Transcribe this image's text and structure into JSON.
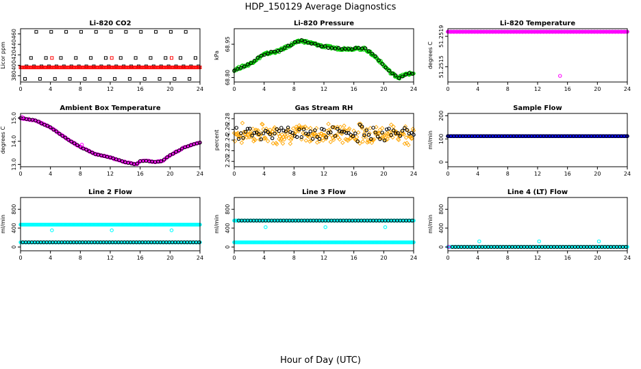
{
  "figure": {
    "title": "HDP_150129  Average Diagnostics",
    "xlabel": "Hour of Day (UTC)"
  },
  "colors": {
    "black": "#000000",
    "red": "#ff0000",
    "green": "#00cc00",
    "magenta": "#ff00ff",
    "orange": "#ffa500",
    "blue": "#0000ff",
    "cyan": "#00ffff"
  },
  "chart_data": [
    {
      "type": "scatter",
      "title": "Li-820 CO2",
      "ylabel": "Licor ppm",
      "xlim": [
        0,
        24
      ],
      "xticks": [
        0,
        4,
        8,
        12,
        16,
        20,
        24
      ],
      "xtick_labels": [
        "0",
        "4",
        "8",
        "12",
        "16",
        "20",
        "24"
      ],
      "ylim": [
        368,
        470
      ],
      "yticks": [
        380,
        400,
        420,
        440,
        460
      ],
      "ytick_labels": [
        "380",
        "400",
        "420",
        "440",
        "460"
      ],
      "series": [
        {
          "name": "black-high",
          "color": "black",
          "marker": "square",
          "gen": {
            "kind": "const",
            "value": 464,
            "x0": 2.1,
            "x1": 23.8,
            "step": 2
          }
        },
        {
          "name": "black-low",
          "color": "black",
          "marker": "square",
          "gen": {
            "kind": "const",
            "value": 374,
            "x0": 0.6,
            "x1": 23.8,
            "step": 2
          }
        },
        {
          "name": "black-mid",
          "color": "black",
          "marker": "square",
          "gen": {
            "kind": "const",
            "value": 414,
            "x0": 1.4,
            "x1": 23.8,
            "step": 2
          }
        },
        {
          "name": "black-base",
          "color": "black",
          "marker": "square",
          "gen": {
            "kind": "const",
            "value": 398,
            "x0": 0.8,
            "x1": 23.8,
            "step": 1
          }
        },
        {
          "name": "red-base",
          "color": "red",
          "marker": "square",
          "gen": {
            "kind": "const",
            "value": 396,
            "x0": 0,
            "x1": 24,
            "step": 0.12
          }
        },
        {
          "name": "red-spikes",
          "color": "red",
          "marker": "square",
          "x": [
            4.2,
            12.2,
            20.2
          ],
          "y": [
            414,
            414,
            414
          ]
        }
      ]
    },
    {
      "type": "scatter",
      "title": "Li-820 Pressure",
      "ylabel": "kPa",
      "xlim": [
        0,
        24
      ],
      "xticks": [
        0,
        4,
        8,
        12,
        16,
        20,
        24
      ],
      "xtick_labels": [
        "0",
        "4",
        "8",
        "12",
        "16",
        "20",
        "24"
      ],
      "ylim": [
        68.78,
        69.02
      ],
      "yticks": [
        68.8,
        68.95
      ],
      "ytick_labels": [
        "68.80",
        "68.95"
      ],
      "series": [
        {
          "name": "green",
          "color": "green",
          "marker": "circle",
          "gen": {
            "kind": "interp",
            "step": 0.1,
            "jitter": 0.006,
            "x": [
              0,
              2,
              4,
              6,
              8,
              9,
              10,
              12,
              14,
              16,
              17.5,
              19,
              21,
              22,
              23,
              24
            ],
            "y": [
              68.835,
              68.86,
              68.905,
              68.92,
              68.955,
              68.965,
              68.958,
              68.94,
              68.93,
              68.93,
              68.93,
              68.89,
              68.82,
              68.8,
              68.815,
              68.82
            ]
          }
        },
        {
          "name": "black",
          "color": "black",
          "marker": "circle",
          "gen": {
            "kind": "interp",
            "step": 0.45,
            "jitter": 0.004,
            "x": [
              0,
              2,
              4,
              6,
              8,
              9,
              10,
              12,
              14,
              16,
              17.5,
              19,
              21,
              22,
              23,
              24
            ],
            "y": [
              68.835,
              68.86,
              68.905,
              68.92,
              68.955,
              68.965,
              68.958,
              68.94,
              68.93,
              68.93,
              68.93,
              68.89,
              68.82,
              68.8,
              68.815,
              68.82
            ]
          }
        }
      ]
    },
    {
      "type": "scatter",
      "title": "Li-820 Temperature",
      "ylabel": "degrees C",
      "xlim": [
        0,
        24
      ],
      "xticks": [
        0,
        4,
        8,
        12,
        16,
        20,
        24
      ],
      "xtick_labels": [
        "0",
        "4",
        "8",
        "12",
        "16",
        "20",
        "24"
      ],
      "ylim": [
        51.2513,
        51.252
      ],
      "yticks": [
        51.2515,
        51.2519
      ],
      "ytick_labels": [
        "51.2515",
        "51.2519"
      ],
      "series": [
        {
          "name": "black",
          "color": "black",
          "marker": "circle",
          "gen": {
            "kind": "const",
            "value": 51.25196,
            "x0": 0,
            "x1": 24,
            "step": 0.4
          }
        },
        {
          "name": "magenta",
          "color": "magenta",
          "marker": "circle",
          "gen": {
            "kind": "const",
            "value": 51.25196,
            "x0": 0,
            "x1": 24,
            "step": 0.1
          }
        },
        {
          "name": "magenta-outlier",
          "color": "magenta",
          "marker": "circle",
          "x": [
            15
          ],
          "y": [
            51.25138
          ]
        }
      ]
    },
    {
      "type": "scatter",
      "title": "Ambient Box Temperature",
      "ylabel": "degrees C",
      "xlim": [
        0,
        24
      ],
      "xticks": [
        0,
        4,
        8,
        12,
        16,
        20,
        24
      ],
      "xtick_labels": [
        "0",
        "4",
        "8",
        "12",
        "16",
        "20",
        "24"
      ],
      "ylim": [
        12.9,
        15.2
      ],
      "yticks": [
        13.0,
        14.0,
        15.0
      ],
      "ytick_labels": [
        "13.0",
        "14.0",
        "15.0"
      ],
      "series": [
        {
          "name": "magenta",
          "color": "magenta",
          "marker": "circle",
          "gen": {
            "kind": "interp",
            "step": 0.12,
            "jitter": 0.02,
            "x": [
              0,
              2,
              4,
              6,
              8,
              10,
              12,
              14,
              15.5,
              16,
              17,
              18,
              19,
              20,
              22,
              24
            ],
            "y": [
              15.0,
              14.9,
              14.6,
              14.15,
              13.75,
              13.45,
              13.3,
              13.1,
              13.0,
              13.15,
              13.15,
              13.1,
              13.15,
              13.4,
              13.75,
              13.95
            ]
          }
        },
        {
          "name": "black",
          "color": "black",
          "marker": "circle",
          "gen": {
            "kind": "interp",
            "step": 0.4,
            "jitter": 0.01,
            "x": [
              0,
              2,
              4,
              6,
              8,
              10,
              12,
              14,
              15.5,
              16,
              17,
              18,
              19,
              20,
              22,
              24
            ],
            "y": [
              15.0,
              14.9,
              14.6,
              14.15,
              13.75,
              13.45,
              13.3,
              13.1,
              13.0,
              13.15,
              13.15,
              13.1,
              13.15,
              13.4,
              13.75,
              13.95
            ]
          }
        },
        {
          "name": "magenta-extra",
          "color": "magenta",
          "marker": "circle",
          "x": [
            0.2,
            8.2
          ],
          "y": [
            15.05,
            13.85
          ]
        }
      ]
    },
    {
      "type": "scatter",
      "title": "Gas Stream RH",
      "ylabel": "percent",
      "xlim": [
        0,
        24
      ],
      "xticks": [
        0,
        4,
        8,
        12,
        16,
        20,
        24
      ],
      "xtick_labels": [
        "0",
        "4",
        "8",
        "12",
        "16",
        "20",
        "24"
      ],
      "ylim": [
        2.19,
        2.29
      ],
      "yticks": [
        2.2,
        2.22,
        2.24,
        2.26,
        2.28
      ],
      "ytick_labels": [
        "2.20",
        "2.22",
        "2.24",
        "2.26",
        "2.28"
      ],
      "series": [
        {
          "name": "orange",
          "color": "orange",
          "marker": "diamond",
          "gen": {
            "kind": "noise",
            "x0": 0,
            "x1": 24,
            "step": 0.1,
            "center": 2.252,
            "spread": 0.022,
            "seed": 7
          }
        },
        {
          "name": "black",
          "color": "black",
          "marker": "circle",
          "gen": {
            "kind": "noise",
            "x0": 0.3,
            "x1": 24,
            "step": 0.3,
            "center": 2.253,
            "spread": 0.018,
            "seed": 11
          }
        }
      ]
    },
    {
      "type": "scatter",
      "title": "Sample Flow",
      "ylabel": "ml/min",
      "xlim": [
        0,
        24
      ],
      "xticks": [
        0,
        4,
        8,
        12,
        16,
        20,
        24
      ],
      "xtick_labels": [
        "0",
        "4",
        "8",
        "12",
        "16",
        "20",
        "24"
      ],
      "ylim": [
        -20,
        210
      ],
      "yticks": [
        0,
        100,
        200
      ],
      "ytick_labels": [
        "0",
        "100",
        "200"
      ],
      "series": [
        {
          "name": "blue",
          "color": "blue",
          "marker": "circle",
          "gen": {
            "kind": "const",
            "value": 112,
            "x0": 0,
            "x1": 24,
            "step": 0.1
          }
        },
        {
          "name": "black",
          "color": "black",
          "marker": "circle",
          "gen": {
            "kind": "const",
            "value": 112,
            "x0": 0,
            "x1": 24,
            "step": 0.4
          }
        }
      ]
    },
    {
      "type": "scatter",
      "title": "Line 2 Flow",
      "ylabel": "ml/min",
      "xlim": [
        0,
        24
      ],
      "xticks": [
        0,
        4,
        8,
        12,
        16,
        20,
        24
      ],
      "xtick_labels": [
        "0",
        "4",
        "8",
        "12",
        "16",
        "20",
        "24"
      ],
      "ylim": [
        -80,
        1050
      ],
      "yticks": [
        0,
        400,
        800
      ],
      "ytick_labels": [
        "0",
        "400",
        "800"
      ],
      "series": [
        {
          "name": "cyan-high",
          "color": "cyan",
          "marker": "circle",
          "gen": {
            "kind": "const",
            "value": 475,
            "x0": 0,
            "x1": 24,
            "step": 0.1
          }
        },
        {
          "name": "cyan-low",
          "color": "cyan",
          "marker": "circle",
          "gen": {
            "kind": "const",
            "value": 100,
            "x0": 0,
            "x1": 24,
            "step": 0.1
          }
        },
        {
          "name": "black",
          "color": "black",
          "marker": "circle",
          "gen": {
            "kind": "const",
            "value": 100,
            "x0": 0.3,
            "x1": 24,
            "step": 0.4
          }
        },
        {
          "name": "cyan-dips",
          "color": "cyan",
          "marker": "circle",
          "x": [
            4.2,
            12.2,
            20.2
          ],
          "y": [
            355,
            355,
            355
          ]
        }
      ]
    },
    {
      "type": "scatter",
      "title": "Line 3 Flow",
      "ylabel": "ml/min",
      "xlim": [
        0,
        24
      ],
      "xticks": [
        0,
        4,
        8,
        12,
        16,
        20,
        24
      ],
      "xtick_labels": [
        "0",
        "4",
        "8",
        "12",
        "16",
        "20",
        "24"
      ],
      "ylim": [
        -80,
        1050
      ],
      "yticks": [
        0,
        400,
        800
      ],
      "ytick_labels": [
        "0",
        "400",
        "800"
      ],
      "series": [
        {
          "name": "cyan-high",
          "color": "cyan",
          "marker": "circle",
          "gen": {
            "kind": "const",
            "value": 560,
            "x0": 0,
            "x1": 24,
            "step": 0.1
          }
        },
        {
          "name": "cyan-low",
          "color": "cyan",
          "marker": "circle",
          "gen": {
            "kind": "const",
            "value": 100,
            "x0": 0,
            "x1": 24,
            "step": 0.1
          }
        },
        {
          "name": "black",
          "color": "black",
          "marker": "circle",
          "gen": {
            "kind": "const",
            "value": 560,
            "x0": 0.6,
            "x1": 24,
            "step": 0.4
          }
        },
        {
          "name": "cyan-dips",
          "color": "cyan",
          "marker": "circle",
          "x": [
            4.2,
            12.2,
            20.2
          ],
          "y": [
            420,
            420,
            420
          ]
        }
      ]
    },
    {
      "type": "scatter",
      "title": "Line 4 (LT) Flow",
      "ylabel": "ml/min",
      "xlim": [
        0,
        24
      ],
      "xticks": [
        0,
        4,
        8,
        12,
        16,
        20,
        24
      ],
      "xtick_labels": [
        "0",
        "4",
        "8",
        "12",
        "16",
        "20",
        "24"
      ],
      "ylim": [
        -80,
        1050
      ],
      "yticks": [
        0,
        400,
        800
      ],
      "ytick_labels": [
        "0",
        "400",
        "800"
      ],
      "series": [
        {
          "name": "cyan",
          "color": "cyan",
          "marker": "circle",
          "gen": {
            "kind": "const",
            "value": 2,
            "x0": 0,
            "x1": 24,
            "step": 0.1
          }
        },
        {
          "name": "black",
          "color": "black",
          "marker": "circle",
          "gen": {
            "kind": "const",
            "value": 2,
            "x0": 0.6,
            "x1": 24,
            "step": 0.4
          }
        },
        {
          "name": "cyan-spikes",
          "color": "cyan",
          "marker": "circle",
          "x": [
            4.2,
            12.2,
            20.2
          ],
          "y": [
            120,
            120,
            120
          ]
        },
        {
          "name": "magenta-start",
          "color": "magenta",
          "marker": "circle",
          "x": [
            0.1
          ],
          "y": [
            2
          ]
        }
      ]
    }
  ]
}
